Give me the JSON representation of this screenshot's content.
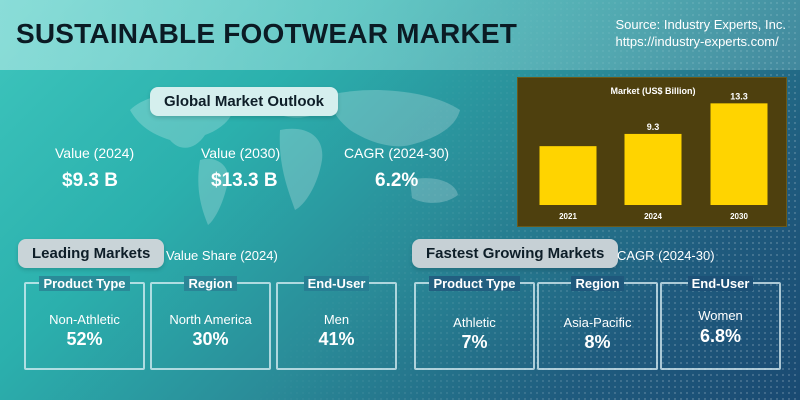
{
  "header": {
    "title": "SUSTAINABLE FOOTWEAR MARKET",
    "source_line1": "Source: Industry Experts, Inc.",
    "source_line2": "https://industry-experts.com/"
  },
  "outlook": {
    "heading": "Global Market Outlook",
    "stats": [
      {
        "label": "Value (2024)",
        "value": "$9.3 B"
      },
      {
        "label": "Value (2030)",
        "value": "$13.3 B"
      },
      {
        "label": "CAGR (2024-30)",
        "value": "6.2%"
      }
    ]
  },
  "chart_data": {
    "type": "bar",
    "title": "Market (US$ Billion)",
    "categories": [
      "2021",
      "2024",
      "2030"
    ],
    "values": [
      null,
      9.3,
      13.3
    ],
    "data_labels": [
      "",
      "9.3",
      "13.3"
    ],
    "estimated_values": [
      7.7,
      9.3,
      13.3
    ],
    "ylim": [
      0,
      14
    ],
    "bar_color": "#ffd400",
    "background": "#4e400e",
    "grid": false,
    "xlabel": "",
    "ylabel": ""
  },
  "leading": {
    "heading": "Leading Markets",
    "subheading": "Value Share (2024)",
    "cards": [
      {
        "header": "Product Type",
        "segment": "Non-Athletic",
        "value": "52%"
      },
      {
        "header": "Region",
        "segment": "North America",
        "value": "30%"
      },
      {
        "header": "End-User",
        "segment": "Men",
        "value": "41%"
      }
    ]
  },
  "fastest": {
    "heading": "Fastest Growing Markets",
    "subheading": "CAGR (2024-30)",
    "cards": [
      {
        "header": "Product Type",
        "segment": "Athletic",
        "value": "7%"
      },
      {
        "header": "Region",
        "segment": "Asia-Pacific",
        "value": "8%"
      },
      {
        "header": "End-User",
        "segment": "Women",
        "value": "6.8%"
      }
    ]
  }
}
